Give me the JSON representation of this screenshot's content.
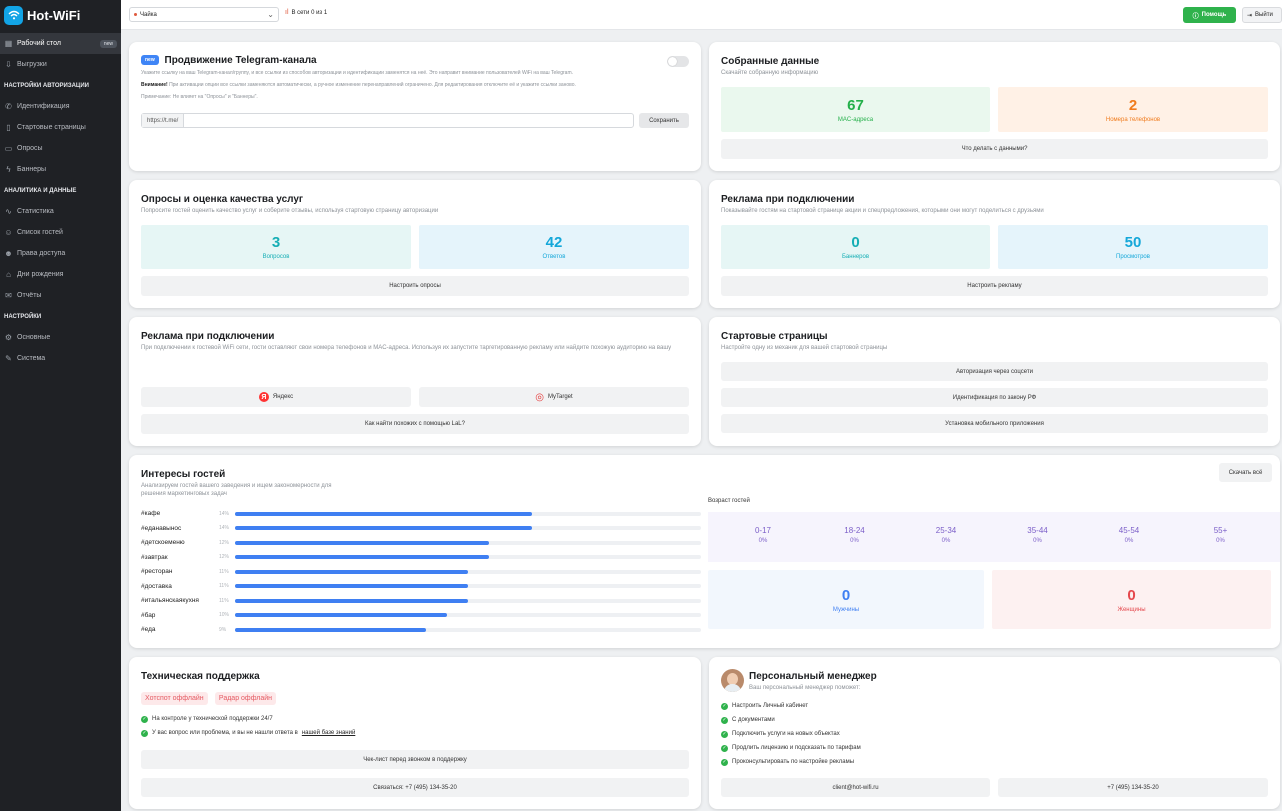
{
  "app": {
    "logo_text": "Hot-WiFi"
  },
  "sidebar": {
    "items": [
      {
        "label": "Рабочий стол",
        "badge": "new",
        "icon": "grid-icon"
      },
      {
        "label": "Выгрузки",
        "icon": "download-icon"
      }
    ],
    "auth_section": "НАСТРОЙКИ АВТОРИЗАЦИИ",
    "auth_items": [
      {
        "label": "Идентификация",
        "icon": "phone-icon"
      },
      {
        "label": "Стартовые страницы",
        "icon": "page-icon"
      },
      {
        "label": "Опросы",
        "icon": "poll-icon"
      },
      {
        "label": "Баннеры",
        "icon": "lightning-icon"
      }
    ],
    "analytics_section": "АНАЛИТИКА И ДАННЫЕ",
    "analytics_items": [
      {
        "label": "Статистика",
        "icon": "chart-icon"
      },
      {
        "label": "Список гостей",
        "icon": "user-icon"
      },
      {
        "label": "Права доступа",
        "icon": "users-icon"
      },
      {
        "label": "Дни рождения",
        "icon": "cake-icon"
      },
      {
        "label": "Отчёты",
        "icon": "mail-icon"
      }
    ],
    "settings_section": "НАСТРОЙКИ",
    "settings_items": [
      {
        "label": "Основные",
        "icon": "gear-icon"
      },
      {
        "label": "Система",
        "icon": "wrench-icon"
      }
    ]
  },
  "topbar": {
    "venue": "Чайка",
    "online": "В сети 0 из 1",
    "help": "Помощь",
    "exit": "Выйти"
  },
  "telegram": {
    "badge": "new",
    "title": "Продвижение Telegram-канала",
    "desc": "Укажите ссылку на ваш Telegram-канал/группу, и все ссылки из способов авторизации и идентификации заменятся на неё. Это направит внимание пользователей WiFi на ваш Telegram.",
    "warn_label": "Внимание!",
    "warn_text": "При активации опции все ссылки заменяются автоматически, а ручное изменение перенаправлений ограничено. Для редактирования отключите её и укажите ссылки заново.",
    "note": "Примечание: Не влияет на \"Опросы\" и \"Баннеры\".",
    "prefix": "https://t.me/",
    "input_value": "",
    "save": "Сохранить"
  },
  "collected": {
    "title": "Собранные данные",
    "subtitle": "Скачайте собранную информацию",
    "mac_value": "67",
    "mac_label": "MAC-адреса",
    "phone_value": "2",
    "phone_label": "Номера телефонов",
    "button": "Что делать с данными?"
  },
  "surveys": {
    "title": "Опросы и оценка качества услуг",
    "subtitle": "Попросите гостей оценить качество услуг и соберите отзывы, используя стартовую страницу авторизации",
    "q_value": "3",
    "q_label": "Вопросов",
    "a_value": "42",
    "a_label": "Ответов",
    "button": "Настроить опросы"
  },
  "ads": {
    "title": "Реклама при подключении",
    "subtitle": "Показывайте гостям на стартовой странице акции и спецпредложения, которыми они могут поделиться с друзьями",
    "banners_value": "0",
    "banners_label": "Баннеров",
    "views_value": "50",
    "views_label": "Просмотров",
    "button": "Настроить рекламу"
  },
  "targeting": {
    "title": "Реклама при подключении",
    "subtitle": "При подключении к гостевой WiFi сети, гости оставляют свои номера телефонов и MAC-адреса. Используя их запустите таргетированную рекламу или найдите похожую аудиторию на вашу",
    "yandex": "Яндекс",
    "mytarget": "MyTarget",
    "button": "Как найти похожих с помощью LaL?"
  },
  "start_pages": {
    "title": "Стартовые страницы",
    "subtitle": "Настройте одну из механик для вашей стартовой страницы",
    "btn1": "Авторизация через соцсети",
    "btn2": "Идентификация по закону РФ",
    "btn3": "Установка мобильного приложения"
  },
  "interests": {
    "title": "Интересы гостей",
    "subtitle": "Анализируем гостей вашего заведения и ищем закономерности для решения маркетинговых задач",
    "download": "Скачать всё",
    "items": [
      {
        "tag": "#кафе",
        "pct": "14%",
        "value": 14
      },
      {
        "tag": "#еданавынос",
        "pct": "14%",
        "value": 14
      },
      {
        "tag": "#детскоеменю",
        "pct": "12%",
        "value": 12
      },
      {
        "tag": "#завтрак",
        "pct": "12%",
        "value": 12
      },
      {
        "tag": "#ресторан",
        "pct": "11%",
        "value": 11
      },
      {
        "tag": "#доставка",
        "pct": "11%",
        "value": 11
      },
      {
        "tag": "#итальянскаякухня",
        "pct": "11%",
        "value": 11
      },
      {
        "tag": "#бар",
        "pct": "10%",
        "value": 10
      },
      {
        "tag": "#еда",
        "pct": "9%",
        "value": 9
      }
    ],
    "age_title": "Возраст гостей",
    "ages": [
      {
        "range": "0-17",
        "pct": "0%"
      },
      {
        "range": "18-24",
        "pct": "0%"
      },
      {
        "range": "25-34",
        "pct": "0%"
      },
      {
        "range": "35-44",
        "pct": "0%"
      },
      {
        "range": "45-54",
        "pct": "0%"
      },
      {
        "range": "55+",
        "pct": "0%"
      }
    ],
    "men_value": "0",
    "men_label": "Мужчины",
    "women_value": "0",
    "women_label": "Женщины"
  },
  "support": {
    "title": "Техническая поддержка",
    "chip1": "Хотспот оффлайн",
    "chip2": "Радар оффлайн",
    "check1": "На контроле у технической поддержки 24/7",
    "check2_text": "У вас вопрос или проблема, и вы не нашли ответа в",
    "check2_link": "нашей базе знаний",
    "button1": "Чек-лист перед звонком в поддержку",
    "button2": "Связаться: +7 (495) 134-35-20"
  },
  "manager": {
    "title": "Персональный менеджер",
    "subtitle": "Ваш персональный менеджер поможет:",
    "items": [
      "Настроить Личный кабинет",
      "С документами",
      "Подключить услуги на новых объектах",
      "Продлить лицензию и подсказать по тарифам",
      "Проконсультировать по настройке рекламы"
    ],
    "email": "client@hot-wifi.ru",
    "phone": "+7 (495) 134-35-20"
  },
  "colors": {
    "green_bg": "#eaf8ee",
    "green": "#24b04a",
    "orange_bg": "#fff1e6",
    "orange": "#f07c1e",
    "teal_bg": "#e6f6f5",
    "teal": "#16aeb5",
    "cyan_bg": "#e5f4fb",
    "cyan": "#14a7d9",
    "bar": "#3f7ff2"
  }
}
